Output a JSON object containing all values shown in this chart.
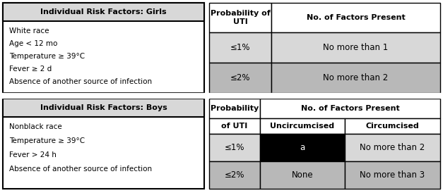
{
  "girls_title": "Individual Risk Factors: Girls",
  "girls_factors": [
    "White race",
    "Age < 12 mo",
    "Temperature ≥ 39°C",
    "Fever ≥ 2 d",
    "Absence of another source of infection"
  ],
  "boys_title": "Individual Risk Factors: Boys",
  "boys_factors": [
    "Nonblack race",
    "Temperature ≥ 39°C",
    "Fever > 24 h",
    "Absence of another source of infection"
  ],
  "girls_table_rows": [
    [
      "≤1%",
      "No more than 1"
    ],
    [
      "≤2%",
      "No more than 2"
    ]
  ],
  "boys_table_rows": [
    [
      "≤1%",
      "a",
      "No more than 2"
    ],
    [
      "≤2%",
      "None",
      "No more than 3"
    ]
  ],
  "light_gray": "#d8d8d8",
  "mid_gray": "#b8b8b8",
  "white": "#ffffff",
  "black": "#000000",
  "bg": "#ffffff"
}
